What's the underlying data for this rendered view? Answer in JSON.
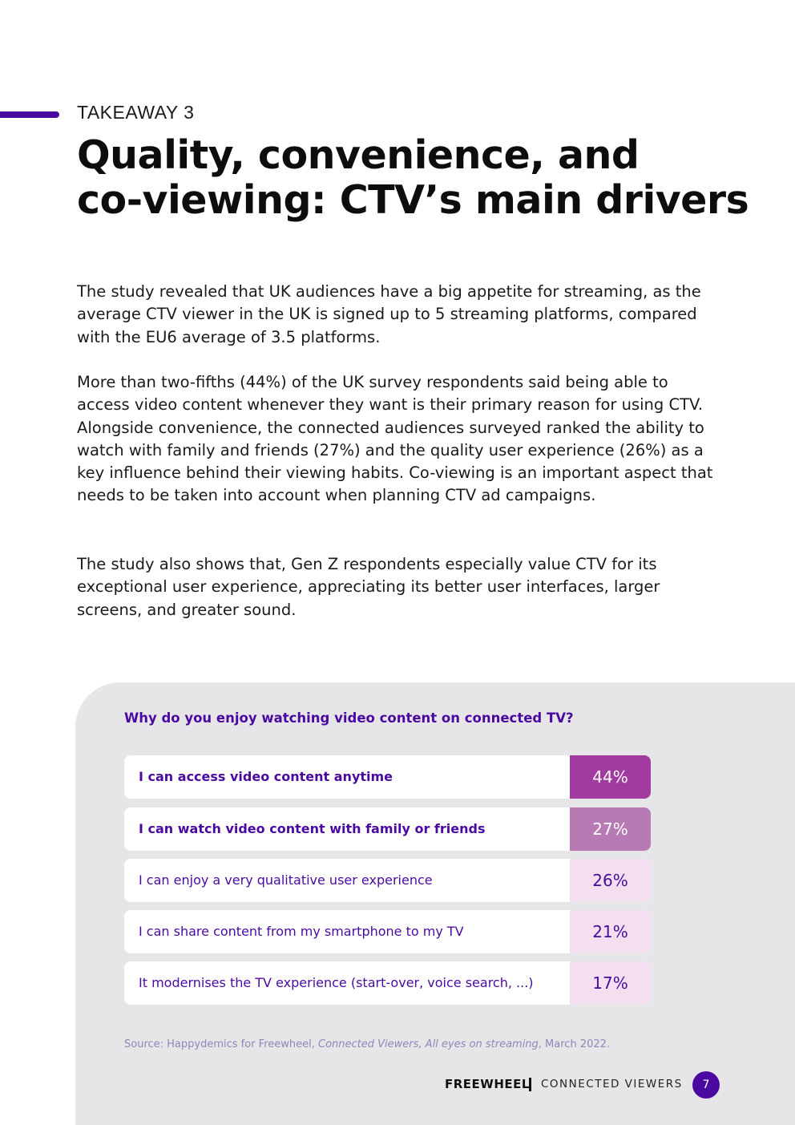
{
  "header": {
    "eyebrow": "TAKEAWAY 3",
    "title_line1": "Quality, convenience, and",
    "title_line2": "co-viewing: CTV’s main drivers"
  },
  "body": {
    "paragraph1": "The study revealed that UK audiences have a big appetite for streaming, as the average CTV viewer in the UK is signed up to 5 streaming platforms, compared with the EU6 average of 3.5 platforms.",
    "paragraph2": "More than two-fifths (44%) of the UK survey respondents said being able to access video content whenever they want is their primary reason for using CTV. Alongside convenience, the connected audiences surveyed ranked the ability to watch with family and friends (27%) and the quality user experience (26%) as a key influence behind their viewing habits. Co-viewing is an important aspect that needs to be taken into account when planning CTV ad campaigns.",
    "paragraph3": "The study also shows that, Gen Z respondents especially value CTV for its exceptional user experience, appreciating its better user interfaces, larger screens, and greater sound."
  },
  "chart_data": {
    "type": "table",
    "title": "Why do you enjoy watching video content on connected TV?",
    "categories": [
      "I can access video content anytime",
      "I can watch video content with family or friends",
      "I can enjoy a very qualitative user experience",
      "I can share content from my smartphone to my TV",
      "It modernises the TV experience (start-over, voice search, ...)"
    ],
    "values": [
      44,
      27,
      26,
      21,
      17
    ],
    "value_labels": [
      "44%",
      "27%",
      "26%",
      "21%",
      "17%"
    ],
    "cell_colors": [
      "#a23b9f",
      "#b77ab4",
      "#f3dff0",
      "#f3dff0",
      "#f3dff0"
    ],
    "value_text_colors": [
      "#ffffff",
      "#ffffff",
      "#4a0aa0",
      "#4a0aa0",
      "#4a0aa0"
    ]
  },
  "source": {
    "prefix": "Source: Happydemics for Freewheel, ",
    "italic": "Connected Viewers, All eyes on streaming",
    "suffix": ", March 2022."
  },
  "footer": {
    "brand": "FREEWHEEL",
    "publication": "CONNECTED VIEWERS",
    "page_number": "7"
  },
  "colors": {
    "brand_purple": "#4a0aa0",
    "panel_bg": "#e6e6e8"
  }
}
